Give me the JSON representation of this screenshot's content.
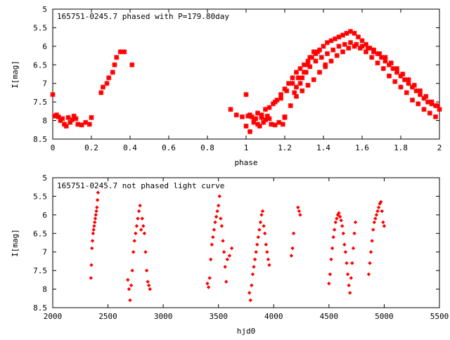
{
  "chart_data": [
    {
      "type": "scatter",
      "title": "165751-0245.7 phased with P=179.80day",
      "xlabel": "phase",
      "ylabel": "I[mag]",
      "xlim": [
        0,
        2
      ],
      "ylim": [
        8.5,
        5
      ],
      "y_inverted": true,
      "grid": false,
      "x_ticks": [
        "0",
        "0.2",
        "0.4",
        "0.6",
        "0.8",
        "1",
        "1.2",
        "1.4",
        "1.6",
        "1.8",
        "2"
      ],
      "y_ticks": [
        "5",
        "5.5",
        "6",
        "6.5",
        "7",
        "7.5",
        "8",
        "8.5"
      ],
      "marker_color": "#ff0000",
      "series": [
        {
          "x": [
            0.0,
            0.01,
            0.02,
            0.03,
            0.04,
            0.05,
            0.06,
            0.07,
            0.08,
            0.09,
            0.1,
            0.11,
            0.12,
            0.13,
            0.15,
            0.17,
            0.19,
            0.2,
            0.25,
            0.26,
            0.28,
            0.29,
            0.31,
            0.32,
            0.33,
            0.35,
            0.37,
            0.41,
            1.0,
            1.01,
            1.02,
            1.03,
            1.04,
            1.05,
            1.06,
            1.07,
            1.08,
            1.09,
            1.1,
            1.11,
            1.12,
            1.13,
            1.15,
            1.17,
            1.19,
            1.2,
            1.25,
            1.26,
            1.28,
            1.29,
            1.31,
            1.32,
            1.33,
            1.35,
            1.37,
            1.41,
            0.92,
            0.95,
            0.98,
            1.0,
            1.02,
            1.04,
            1.06,
            1.08,
            1.1,
            1.12,
            1.14,
            1.16,
            1.18,
            1.2,
            1.22,
            1.24,
            1.26,
            1.28,
            1.3,
            1.32,
            1.34,
            1.36,
            1.38,
            1.4,
            1.42,
            1.44,
            1.46,
            1.48,
            1.5,
            1.52,
            1.54,
            1.56,
            1.58,
            1.6,
            1.62,
            1.64,
            1.66,
            1.68,
            1.7,
            1.72,
            1.74,
            1.76,
            1.78,
            1.8,
            1.82,
            1.84,
            1.86,
            1.88,
            1.9,
            1.92,
            1.94,
            1.96,
            1.98,
            2.0,
            1.15,
            1.18,
            1.21,
            1.24,
            1.27,
            1.3,
            1.33,
            1.36,
            1.39,
            1.42,
            1.45,
            1.48,
            1.51,
            1.54,
            1.57,
            1.6,
            1.63,
            1.66,
            1.69,
            1.72,
            1.75,
            1.78,
            1.81,
            1.84,
            1.87,
            1.9,
            1.93,
            1.96,
            1.99,
            1.2,
            1.23,
            1.26,
            1.29,
            1.32,
            1.35,
            1.38,
            1.41,
            1.44,
            1.47,
            1.5,
            1.53,
            1.56,
            1.59,
            1.62,
            1.65,
            1.68,
            1.71,
            1.74,
            1.77,
            1.8,
            1.83,
            1.86,
            1.89,
            1.92,
            1.95,
            1.98
          ],
          "y": [
            7.3,
            7.88,
            7.85,
            7.9,
            8.0,
            7.95,
            8.1,
            8.15,
            7.92,
            8.05,
            7.98,
            7.88,
            7.95,
            8.1,
            8.12,
            8.05,
            8.1,
            7.92,
            7.25,
            7.1,
            7.0,
            6.85,
            6.7,
            6.5,
            6.3,
            6.15,
            6.15,
            6.5,
            7.3,
            7.88,
            7.85,
            7.9,
            8.0,
            7.95,
            8.1,
            8.15,
            7.92,
            8.05,
            7.98,
            7.88,
            7.95,
            8.1,
            8.12,
            8.05,
            8.1,
            7.92,
            7.25,
            7.1,
            7.0,
            6.85,
            6.7,
            6.5,
            6.3,
            6.15,
            6.15,
            6.5,
            7.7,
            7.85,
            7.9,
            8.15,
            8.3,
            8.05,
            7.8,
            7.85,
            7.7,
            7.65,
            7.55,
            7.45,
            7.3,
            7.15,
            7.0,
            6.85,
            6.7,
            6.6,
            6.5,
            6.4,
            6.3,
            6.2,
            6.1,
            6.0,
            5.9,
            5.85,
            5.8,
            5.75,
            5.7,
            5.65,
            5.6,
            5.65,
            5.75,
            5.85,
            5.95,
            6.05,
            6.15,
            6.2,
            6.3,
            6.4,
            6.5,
            6.6,
            6.7,
            6.8,
            6.9,
            7.0,
            7.1,
            7.2,
            7.3,
            7.4,
            7.5,
            7.55,
            7.6,
            7.7,
            7.5,
            7.4,
            7.2,
            7.0,
            6.85,
            6.7,
            6.55,
            6.4,
            6.3,
            6.2,
            6.1,
            6.0,
            5.95,
            5.9,
            5.95,
            6.0,
            6.05,
            6.1,
            6.2,
            6.3,
            6.45,
            6.6,
            6.75,
            6.9,
            7.05,
            7.2,
            7.35,
            7.5,
            7.6,
            7.9,
            7.6,
            7.35,
            7.2,
            7.05,
            6.9,
            6.7,
            6.55,
            6.4,
            6.25,
            6.15,
            6.05,
            6.0,
            6.05,
            6.15,
            6.3,
            6.45,
            6.6,
            6.8,
            6.95,
            7.1,
            7.25,
            7.45,
            7.55,
            7.7,
            7.8,
            7.9
          ]
        }
      ]
    },
    {
      "type": "scatter",
      "title": "165751-0245.7 not phased light curve",
      "xlabel": "hjd0",
      "ylabel": "I[mag]",
      "xlim": [
        2000,
        5500
      ],
      "ylim": [
        8.5,
        5
      ],
      "y_inverted": true,
      "grid": false,
      "x_ticks": [
        "2000",
        "2500",
        "3000",
        "3500",
        "4000",
        "4500",
        "5000",
        "5500"
      ],
      "y_ticks": [
        "5",
        "5.5",
        "6",
        "6.5",
        "7",
        "7.5",
        "8",
        "8.5"
      ],
      "marker_color": "#ff0000",
      "series": [
        {
          "x": [
            2345,
            2350,
            2355,
            2360,
            2365,
            2370,
            2375,
            2380,
            2385,
            2390,
            2395,
            2400,
            2405,
            2410,
            2680,
            2690,
            2700,
            2710,
            2720,
            2730,
            2740,
            2750,
            2760,
            2770,
            2780,
            2790,
            2800,
            2810,
            2820,
            2830,
            2840,
            2850,
            2860,
            2870,
            2880,
            3400,
            3410,
            3420,
            3430,
            3440,
            3450,
            3460,
            3470,
            3480,
            3490,
            3500,
            3510,
            3520,
            3530,
            3540,
            3550,
            3560,
            3570,
            3580,
            3600,
            3620,
            3780,
            3790,
            3800,
            3810,
            3820,
            3830,
            3840,
            3850,
            3860,
            3870,
            3880,
            3890,
            3900,
            3910,
            3920,
            3930,
            3940,
            3950,
            3960,
            4160,
            4170,
            4180,
            4220,
            4230,
            4240,
            4500,
            4510,
            4520,
            4530,
            4540,
            4550,
            4560,
            4570,
            4580,
            4590,
            4600,
            4610,
            4620,
            4630,
            4640,
            4650,
            4660,
            4670,
            4680,
            4690,
            4700,
            4710,
            4720,
            4730,
            4740,
            4860,
            4870,
            4880,
            4890,
            4900,
            4910,
            4920,
            4930,
            4940,
            4950,
            4960,
            4970,
            4980,
            4990,
            5000
          ],
          "y": [
            7.7,
            7.35,
            6.9,
            6.7,
            6.5,
            6.4,
            6.3,
            6.2,
            6.1,
            6.0,
            5.9,
            5.8,
            5.6,
            5.4,
            7.75,
            8.0,
            8.3,
            7.9,
            7.5,
            7.0,
            6.7,
            6.5,
            6.3,
            6.1,
            5.9,
            5.75,
            6.4,
            6.1,
            6.3,
            6.5,
            7.0,
            7.5,
            7.8,
            7.9,
            8.0,
            7.85,
            7.95,
            7.7,
            7.2,
            6.8,
            6.6,
            6.4,
            6.2,
            6.05,
            5.9,
            5.75,
            5.5,
            6.1,
            6.3,
            6.7,
            7.0,
            7.4,
            7.8,
            7.2,
            7.1,
            6.9,
            8.1,
            8.3,
            7.9,
            7.6,
            7.4,
            7.2,
            7.0,
            6.8,
            6.6,
            6.4,
            6.2,
            6.0,
            5.9,
            6.3,
            6.5,
            6.8,
            7.0,
            7.2,
            7.35,
            7.1,
            6.9,
            6.5,
            5.8,
            5.9,
            6.0,
            7.85,
            7.6,
            7.2,
            6.9,
            6.6,
            6.4,
            6.2,
            6.1,
            6.0,
            5.95,
            6.05,
            6.15,
            6.3,
            6.5,
            6.8,
            7.0,
            7.3,
            7.6,
            7.9,
            8.1,
            7.7,
            7.3,
            6.9,
            6.5,
            6.2,
            7.6,
            7.3,
            7.0,
            6.7,
            6.4,
            6.2,
            6.1,
            6.0,
            5.9,
            5.8,
            5.7,
            5.65,
            5.9,
            6.2,
            6.3
          ]
        }
      ]
    }
  ]
}
